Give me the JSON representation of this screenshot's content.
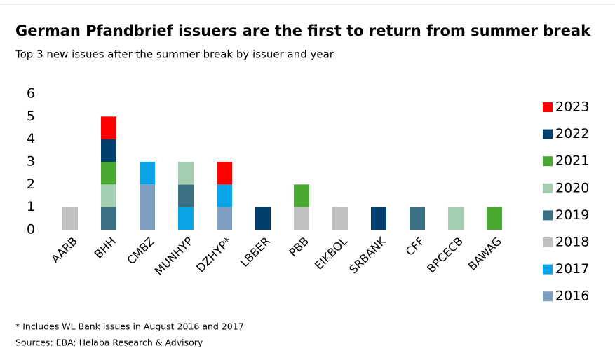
{
  "chart_data": {
    "type": "bar",
    "stacked": true,
    "title": "German Pfandbrief issuers are the first to return from summer break",
    "subtitle": "Top 3 new issues after the summer break by issuer and year",
    "footnotes": [
      "* Includes WL Bank issues in August 2016 and 2017",
      "Sources: EBA: Helaba Research & Advisory"
    ],
    "categories": [
      "AARB",
      "BHH",
      "CMBZ",
      "MUNHYP",
      "DZHYP*",
      "LBBER",
      "PBB",
      "EIKBOL",
      "SRBANK",
      "CFF",
      "BPCECB",
      "BAWAG"
    ],
    "series": [
      {
        "name": "2023",
        "color": "#ff0000",
        "values": [
          0,
          1,
          0,
          0,
          1,
          0,
          0,
          0,
          0,
          0,
          0,
          0
        ]
      },
      {
        "name": "2022",
        "color": "#003f6e",
        "values": [
          0,
          1,
          0,
          0,
          0,
          1,
          0,
          0,
          1,
          0,
          0,
          0
        ]
      },
      {
        "name": "2021",
        "color": "#4aa832",
        "values": [
          0,
          1,
          0,
          0,
          0,
          0,
          1,
          0,
          0,
          0,
          0,
          1
        ]
      },
      {
        "name": "2020",
        "color": "#a3cfb0",
        "values": [
          0,
          1,
          0,
          1,
          0,
          0,
          0,
          0,
          0,
          0,
          1,
          0
        ]
      },
      {
        "name": "2019",
        "color": "#3a7185",
        "values": [
          0,
          1,
          0,
          1,
          0,
          0,
          0,
          0,
          0,
          1,
          0,
          0
        ]
      },
      {
        "name": "2018",
        "color": "#c0c0c0",
        "values": [
          1,
          0,
          0,
          0,
          0,
          0,
          1,
          1,
          0,
          0,
          0,
          0
        ]
      },
      {
        "name": "2017",
        "color": "#0aa3e6",
        "values": [
          0,
          0,
          1,
          1,
          1,
          0,
          0,
          0,
          0,
          0,
          0,
          0
        ]
      },
      {
        "name": "2016",
        "color": "#7f9fc0",
        "values": [
          0,
          0,
          2,
          0,
          1,
          0,
          0,
          0,
          0,
          0,
          0,
          0
        ]
      }
    ],
    "ylim": [
      0,
      6
    ],
    "yticks": [
      0,
      1,
      2,
      3,
      4,
      5,
      6
    ],
    "grid": false,
    "legend": "right"
  }
}
